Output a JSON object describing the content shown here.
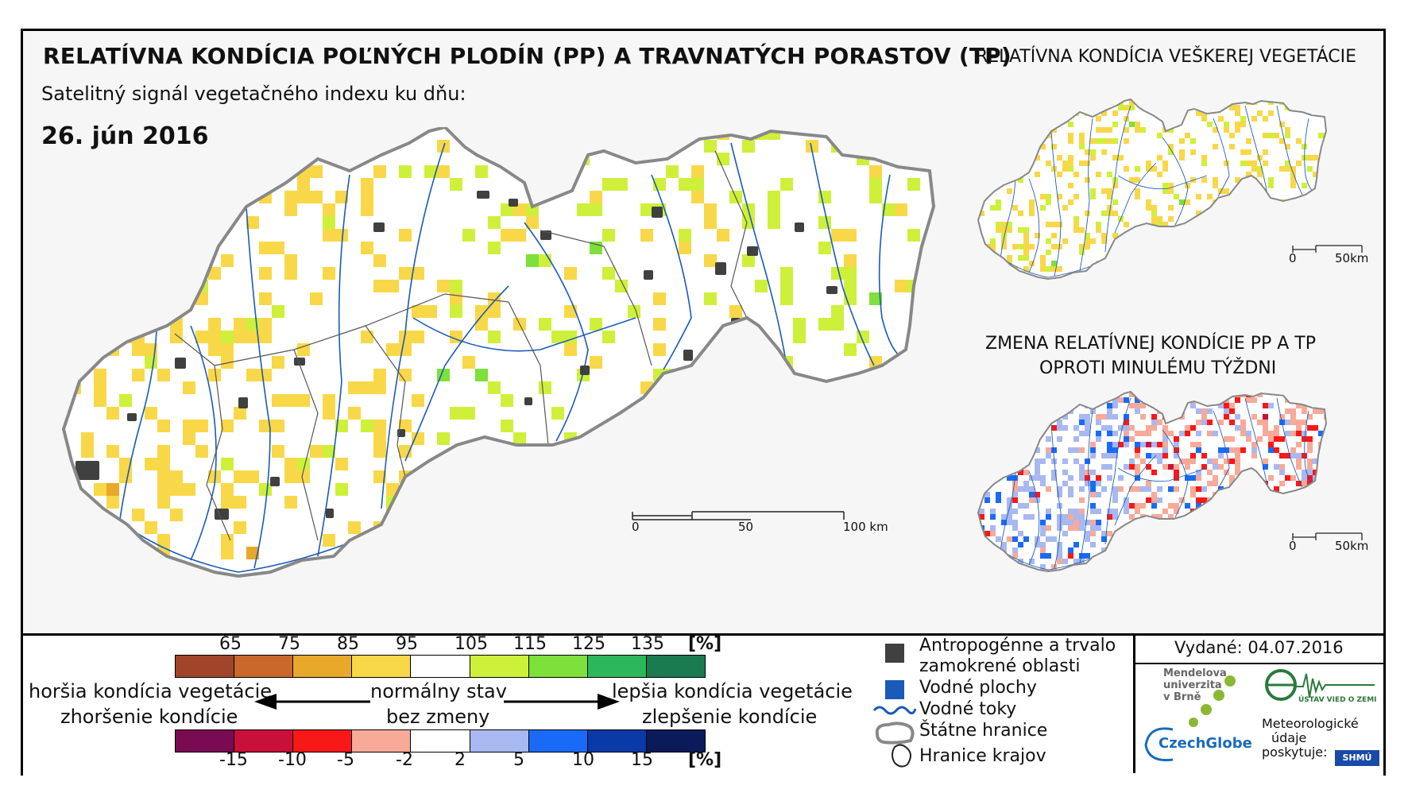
{
  "header": {
    "title": "RELATÍVNA KONDÍCIA POĽNÝCH PLODÍN (PP) A TRAVNATÝCH PORASTOV (TP)",
    "subtitle": "Satelitný signál vegetačného indexu ku dňu:",
    "date": "26. jún 2016"
  },
  "inset_top": {
    "title": "RELATÍVNA KONDÍCIA VEŠKEREJ VEGETÁCIE",
    "scale_zero": "0",
    "scale_end": "50km"
  },
  "inset_bottom": {
    "title_line1": "ZMENA RELATÍVNEJ KONDÍCIE PP A TP",
    "title_line2": "OPROTI MINULÉMU TÝŽDNI",
    "scale_zero": "0",
    "scale_end": "50km"
  },
  "main_scale": {
    "zero": "0",
    "mid": "50",
    "end": "100 km"
  },
  "legend_condition": {
    "labels": [
      "65",
      "75",
      "85",
      "95",
      "105",
      "115",
      "125",
      "135"
    ],
    "unit": "[%]",
    "colors": [
      "#a0442a",
      "#c8682a",
      "#e8a82a",
      "#f8d848",
      "#ffffff",
      "#cff03a",
      "#7ee03a",
      "#2cb85a",
      "#1a7a50"
    ]
  },
  "legend_change": {
    "labels": [
      "-15",
      "-10",
      "-5",
      "-2",
      "2",
      "5",
      "10",
      "15"
    ],
    "unit": "[%]",
    "colors": [
      "#7a0a52",
      "#c8103a",
      "#f81818",
      "#f8aa98",
      "#ffffff",
      "#a8b8f0",
      "#1a6af8",
      "#0a3aa8",
      "#0a1a5a"
    ]
  },
  "legend_text": {
    "worse_condition": "horšia kondícia vegetácie",
    "worse_change": "zhoršenie kondície",
    "normal": "normálny stav",
    "no_change": "bez zmeny",
    "better_condition": "lepšia kondícia vegetácie",
    "better_change": "zlepšenie kondície"
  },
  "map_legend": {
    "anthropogenic_line1": "Antropogénne a trvalo",
    "anthropogenic_line2": "zamokrené oblasti",
    "water_areas": "Vodné plochy",
    "water_streams": "Vodné toky",
    "state_border": "Štátne hranice",
    "region_border": "Hranice krajov",
    "colors": {
      "anthropogenic": "#404040",
      "water_areas": "#1a5ab8",
      "water_streams": "#1a5ab8"
    }
  },
  "issued": {
    "label": "Vydané: 04.07.2016"
  },
  "logos": {
    "mendel_line1": "Mendelova",
    "mendel_line2": "univerzita",
    "mendel_line3": "v Brně",
    "czechglobe": "CzechGlobe",
    "ustav": "ÚSTAV VIED O ZEMI",
    "meteo_line1": "Meteorologické",
    "meteo_line2": "údaje",
    "meteo_line3": "poskytuje:",
    "shmu": "SHMÚ"
  }
}
